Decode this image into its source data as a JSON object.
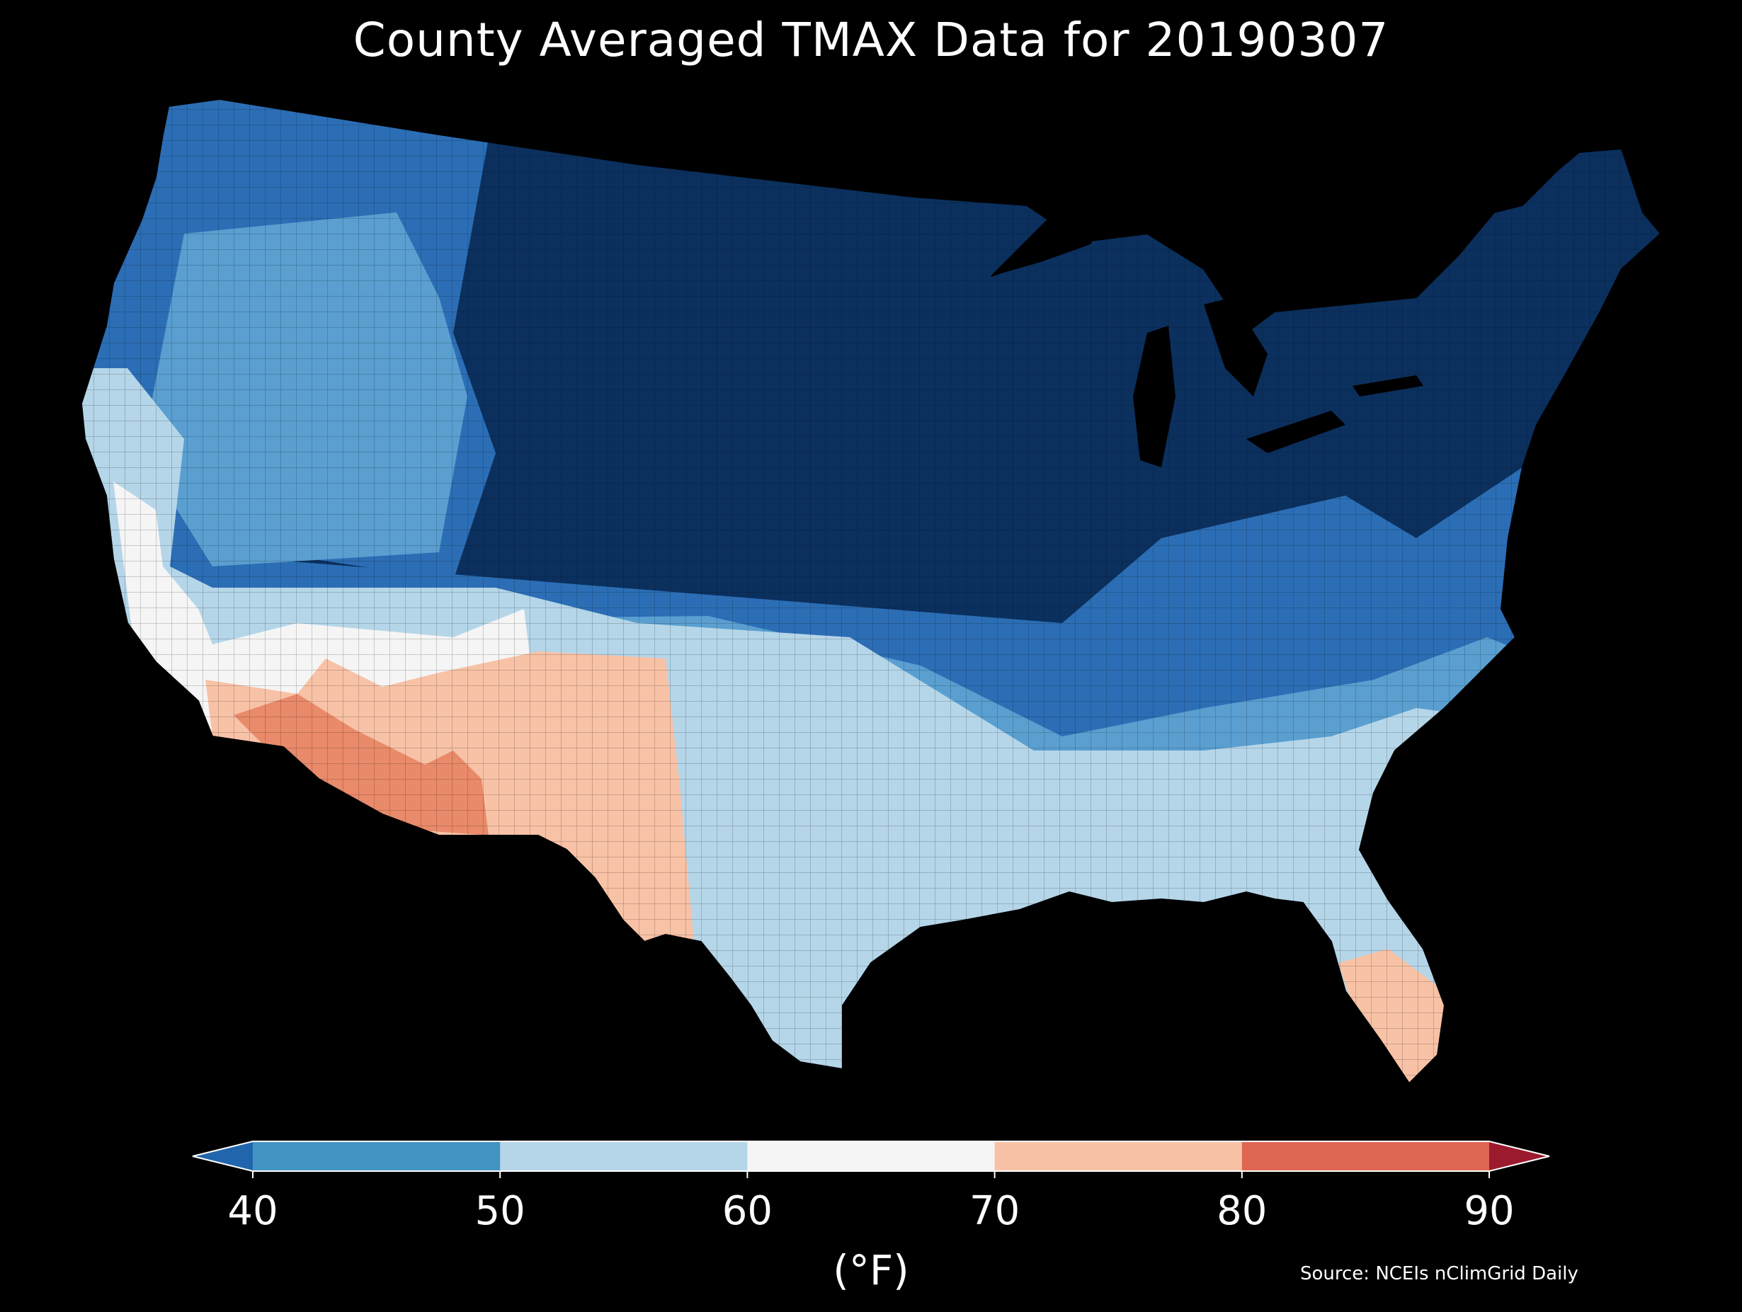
{
  "title": "County Averaged TMAX Data for 20190307",
  "colorbar": {
    "label": "(°F)",
    "ticks": [
      "40",
      "50",
      "60",
      "70",
      "80",
      "90"
    ],
    "bins": [
      {
        "range": "<40",
        "color": "#2166ac"
      },
      {
        "range": "40-50",
        "color": "#4393c3"
      },
      {
        "range": "50-60",
        "color": "#b5d6e9"
      },
      {
        "range": "60-70",
        "color": "#f5f5f5"
      },
      {
        "range": "70-80",
        "color": "#f8c2a6"
      },
      {
        "range": "80-90",
        "color": "#dd6753"
      },
      {
        "range": ">90",
        "color": "#9b1a2e"
      }
    ]
  },
  "map": {
    "region": "Contiguous United States",
    "unit": "county",
    "variable": "TMAX",
    "colors": {
      "very_cold": "#0b305e",
      "cold": "#2c6eb5",
      "cool": "#5a9fd0",
      "mild": "#b5d6e9",
      "neutral": "#f5f5f5",
      "warm": "#f8c2a6",
      "hot": "#e98a6a",
      "water": "#000000"
    }
  },
  "source": "Source: NCEIs nClimGrid Daily"
}
